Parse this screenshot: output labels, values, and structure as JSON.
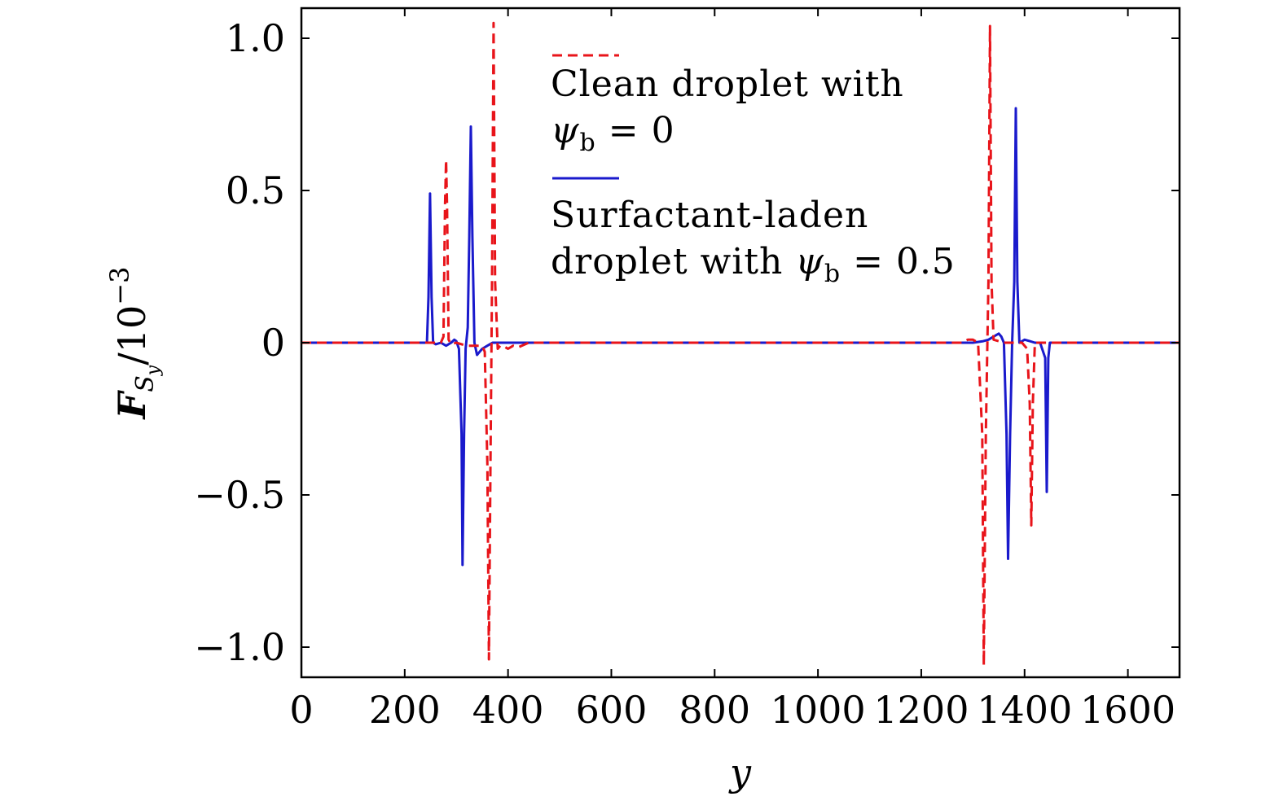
{
  "chart_data": {
    "type": "line",
    "title": "",
    "xlabel": "y",
    "ylabel": {
      "main": "F",
      "sub": "S",
      "subsub": "y",
      "suffix": "/10",
      "exponent": "−3"
    },
    "xlim": [
      0,
      1700
    ],
    "ylim": [
      -1.1,
      1.1
    ],
    "xticks": [
      0,
      200,
      400,
      600,
      800,
      1000,
      1200,
      1400,
      1600
    ],
    "xtick_labels": [
      "0",
      "200",
      "400",
      "600",
      "800",
      "1000",
      "1200",
      "1400",
      "1600"
    ],
    "yticks": [
      -1.0,
      -0.5,
      0,
      0.5,
      1.0
    ],
    "ytick_labels": [
      "−1.0",
      "−0.5",
      "0",
      "0.5",
      "1.0"
    ],
    "grid": false,
    "legend_position": "top-center",
    "series": [
      {
        "name": "Clean droplet with ψb = 0",
        "legend_lines": [
          "Clean droplet with",
          "ψb = 0"
        ],
        "color": "#e8141a",
        "style": "dashed",
        "x": [
          0,
          270,
          275,
          278,
          280,
          282,
          285,
          290,
          300,
          320,
          340,
          350,
          355,
          360,
          363,
          366,
          369,
          372,
          375,
          380,
          385,
          390,
          400,
          410,
          420,
          440,
          1280,
          1290,
          1300,
          1310,
          1318,
          1321,
          1325,
          1330,
          1333,
          1336,
          1340,
          1350,
          1360,
          1380,
          1395,
          1405,
          1410,
          1413,
          1416,
          1420,
          1430,
          1700
        ],
        "y": [
          0,
          0,
          0.02,
          0.45,
          0.6,
          0.45,
          0.01,
          -0.005,
          0.0,
          -0.01,
          -0.01,
          -0.01,
          -0.03,
          -0.4,
          -1.04,
          -0.4,
          0.2,
          1.05,
          0.2,
          -0.02,
          -0.01,
          -0.01,
          -0.02,
          -0.01,
          -0.015,
          0,
          0,
          0.01,
          0.01,
          0.0,
          -0.3,
          -1.06,
          -0.3,
          0.2,
          1.04,
          0.2,
          0.01,
          0.005,
          0.0,
          0.0,
          0.0,
          -0.02,
          -0.2,
          -0.6,
          -0.2,
          0.0,
          0.0,
          0
        ]
      },
      {
        "name": "Surfactant-laden droplet with ψb = 0.5",
        "legend_lines": [
          "Surfactant-laden",
          "droplet with ψb = 0.5"
        ],
        "color": "#1a1acc",
        "style": "solid",
        "x": [
          0,
          243,
          246,
          249,
          252,
          255,
          260,
          270,
          280,
          290,
          296,
          300,
          305,
          310,
          312,
          315,
          318,
          322,
          325,
          328,
          331,
          335,
          340,
          345,
          350,
          360,
          370,
          400,
          1300,
          1320,
          1330,
          1340,
          1350,
          1355,
          1360,
          1365,
          1368,
          1372,
          1376,
          1380,
          1383,
          1386,
          1390,
          1400,
          1410,
          1420,
          1430,
          1440,
          1443,
          1446,
          1449,
          1455,
          1700
        ],
        "y": [
          0,
          0,
          0.15,
          0.49,
          0.15,
          0.0,
          -0.005,
          0.0,
          -0.01,
          0.0,
          0.01,
          0.005,
          -0.02,
          -0.3,
          -0.73,
          -0.3,
          -0.02,
          0.05,
          0.35,
          0.71,
          0.35,
          0.0,
          -0.04,
          -0.03,
          -0.02,
          -0.01,
          0.0,
          0,
          0,
          0.005,
          0.01,
          0.02,
          0.03,
          0.02,
          0.0,
          -0.3,
          -0.71,
          -0.3,
          0.0,
          0.2,
          0.77,
          0.2,
          0.0,
          0.01,
          0.005,
          0.0,
          0.0,
          -0.05,
          -0.49,
          -0.05,
          0.0,
          0.0,
          0
        ]
      }
    ]
  }
}
